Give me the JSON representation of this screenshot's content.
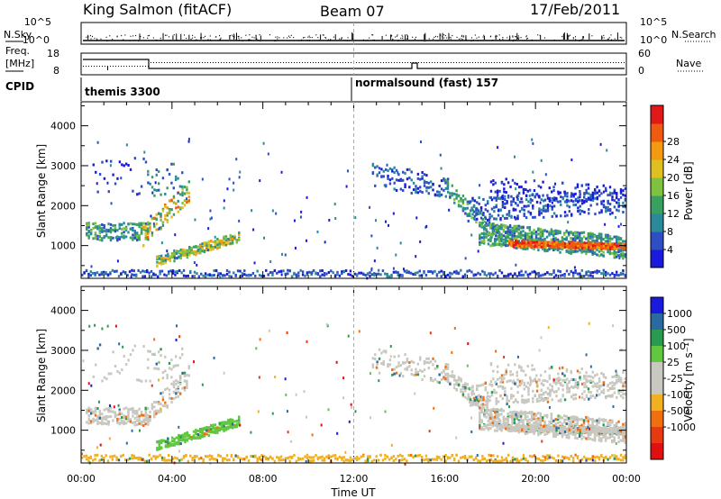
{
  "header": {
    "station": "King Salmon (fitACF)",
    "beam": "Beam 07",
    "date": "17/Feb/2011"
  },
  "strip": {
    "nsky_label": "N.Sky",
    "nsky_ticks": [
      "10^5",
      "10^0"
    ],
    "nsearch_label": "N.Search",
    "nsearch_ticks": [
      "10^5",
      "10^0"
    ],
    "freq_label_1": "Freq.",
    "freq_label_2": "[MHz]",
    "freq_ticks": [
      "18",
      "8"
    ],
    "nave_label": "Nave",
    "nave_ticks": [
      "60",
      "0"
    ],
    "cpid_label": "CPID",
    "cpid_1": "themis 3300",
    "cpid_2": "normalsound (fast) 157"
  },
  "chart_data": [
    {
      "type": "heatmap",
      "name": "power",
      "ylabel": "Slant Range [km]",
      "xlabel": "Time UT",
      "xlim_hours": [
        0,
        24
      ],
      "ylim_km": [
        180,
        4600
      ],
      "yticks": [
        "1000",
        "2000",
        "3000",
        "4000"
      ],
      "xticks": [
        "00:00",
        "04:00",
        "08:00",
        "12:00",
        "16:00",
        "20:00",
        "00:00"
      ],
      "colorbar": {
        "label": "Power [dB]",
        "ticks": [
          "4",
          "8",
          "12",
          "16",
          "20",
          "24",
          "28"
        ],
        "colors": [
          "#1a1adc",
          "#2e4fc4",
          "#2a8a9a",
          "#3aa060",
          "#7fc240",
          "#e0c020",
          "#f39a10",
          "#ef5a10",
          "#e01818"
        ]
      }
    },
    {
      "type": "heatmap",
      "name": "velocity",
      "ylabel": "Slant Range [km]",
      "xlim_hours": [
        0,
        24
      ],
      "ylim_km": [
        180,
        4600
      ],
      "yticks": [
        "1000",
        "2000",
        "3000",
        "4000"
      ],
      "colorbar": {
        "label": "Velocity [m s⁻¹]",
        "ticks": [
          "1000",
          "500",
          "100",
          "25",
          "-25",
          "-100",
          "-500",
          "-1000"
        ],
        "colors": [
          "#1a1adc",
          "#2a6aa0",
          "#2a9a50",
          "#60c840",
          "#c8c8c0",
          "#c8c8c0",
          "#f0b020",
          "#f07010",
          "#e83a10",
          "#e01010"
        ]
      }
    }
  ]
}
